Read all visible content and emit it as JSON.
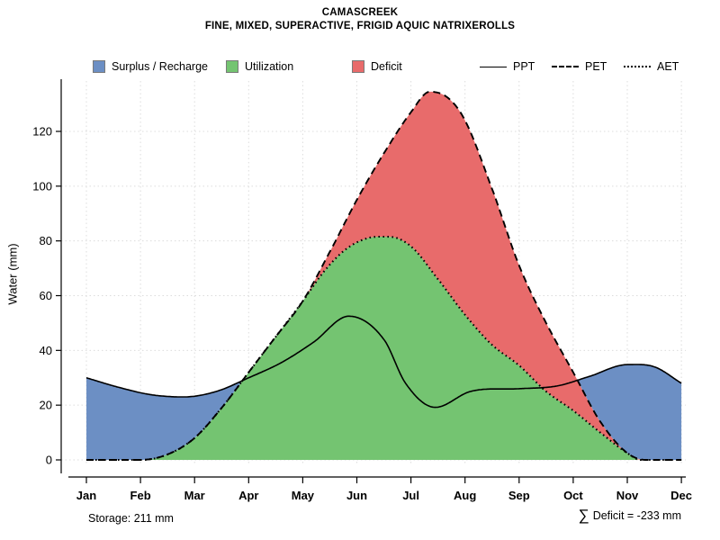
{
  "title": "CAMASCREEK",
  "subtitle": "FINE, MIXED, SUPERACTIVE, FRIGID AQUIC NATRIXEROLLS",
  "legend": {
    "areas": [
      {
        "label": "Surplus / Recharge",
        "color": "#6C8FC4"
      },
      {
        "label": "Utilization",
        "color": "#74C471"
      },
      {
        "label": "Deficit",
        "color": "#E86B6B"
      }
    ],
    "lines": [
      {
        "label": "PPT",
        "style": "solid"
      },
      {
        "label": "PET",
        "style": "dashed"
      },
      {
        "label": "AET",
        "style": "dotted"
      }
    ]
  },
  "footer": {
    "storage_text": "Storage: 211 mm",
    "deficit_sigma": "∑",
    "deficit_text": "Deficit = -233 mm"
  },
  "chart_data": {
    "type": "area",
    "title": "CAMASCREEK",
    "subtitle": "FINE, MIXED, SUPERACTIVE, FRIGID AQUIC NATRIXEROLLS",
    "xlabel": "",
    "ylabel": "Water (mm)",
    "months": [
      "Jan",
      "Feb",
      "Mar",
      "Apr",
      "May",
      "Jun",
      "Jul",
      "Aug",
      "Sep",
      "Oct",
      "Nov",
      "Dec"
    ],
    "y_ticks": [
      0,
      20,
      40,
      60,
      80,
      100,
      120
    ],
    "ylim": [
      0,
      138
    ],
    "grid": true,
    "legend_position": "top",
    "series": [
      {
        "name": "PPT",
        "style": "solid",
        "color": "#000000",
        "x": [
          0,
          0.6,
          1.2,
          1.8,
          2.4,
          3,
          3.6,
          4.2,
          4.85,
          5.5,
          5.9,
          6.45,
          7.1,
          8,
          8.7,
          9.3,
          10,
          10.5,
          11
        ],
        "y": [
          30,
          26.5,
          23.8,
          23,
          25,
          30,
          35.5,
          43,
          52.5,
          44,
          28,
          19.2,
          25,
          26,
          27,
          30.5,
          34.8,
          34,
          28
        ]
      },
      {
        "name": "PET",
        "style": "dashed",
        "color": "#000000",
        "x": [
          0,
          1,
          1.5,
          2,
          2.5,
          3,
          3.5,
          4,
          4.5,
          5,
          5.5,
          6,
          6.35,
          6.7,
          7,
          7.5,
          8,
          8.5,
          9,
          9.5,
          10,
          10.35,
          11
        ],
        "y": [
          0,
          0,
          2,
          8,
          19,
          32,
          45,
          58,
          76,
          95,
          112,
          127,
          134.5,
          132,
          124,
          99,
          71,
          50,
          32,
          14,
          2.5,
          0,
          0
        ]
      },
      {
        "name": "AET",
        "style": "dotted",
        "color": "#000000",
        "x": [
          0,
          1,
          1.5,
          2,
          2.5,
          3,
          3.5,
          4,
          4.4,
          4.8,
          5.2,
          5.6,
          6,
          6.5,
          7,
          7.5,
          8,
          8.5,
          9,
          9.5,
          10,
          10.25,
          11
        ],
        "y": [
          0,
          0,
          2,
          8,
          19,
          32,
          45,
          58,
          69,
          77,
          81,
          81.5,
          78,
          66,
          53,
          42,
          34.5,
          25,
          18,
          10,
          2.5,
          0,
          0
        ]
      }
    ],
    "areas": [
      {
        "name": "surplus-recharge",
        "label": "Surplus / Recharge",
        "rule": "PPT above PET"
      },
      {
        "name": "utilization",
        "label": "Utilization",
        "rule": "area under AET"
      },
      {
        "name": "deficit",
        "label": "Deficit",
        "rule": "PET above AET"
      }
    ],
    "annotations": {
      "storage_mm": 211,
      "deficit_sum_mm": -233
    }
  }
}
